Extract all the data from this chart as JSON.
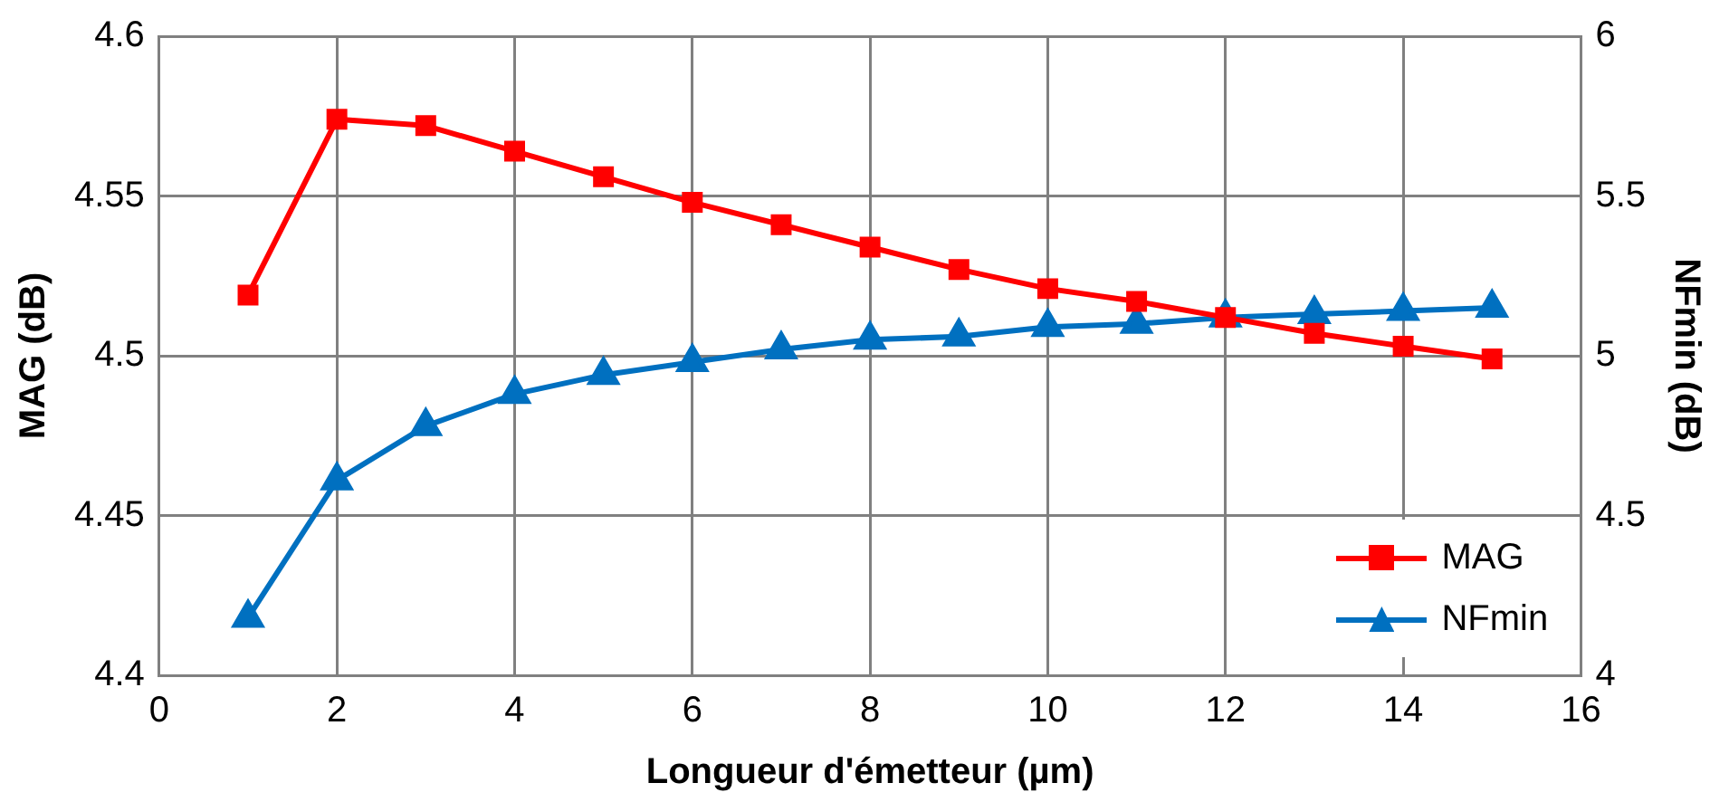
{
  "chart_data": {
    "type": "line",
    "xlabel": "Longueur d'émetteur (µm)",
    "ylabel": "MAG (dB)",
    "y2label": "NFmin (dB)",
    "x": [
      1,
      2,
      3,
      4,
      5,
      6,
      7,
      8,
      9,
      10,
      11,
      12,
      13,
      14,
      15
    ],
    "series": [
      {
        "name": "MAG",
        "color": "#ff0000",
        "marker": "square",
        "values": [
          4.519,
          4.574,
          4.572,
          4.564,
          4.556,
          4.548,
          4.541,
          4.534,
          4.527,
          4.521,
          4.517,
          4.512,
          4.507,
          4.503,
          4.499
        ]
      },
      {
        "name": "NFmin",
        "color": "#0070c0",
        "marker": "triangle",
        "axis": "y2",
        "values": [
          4.18,
          4.61,
          4.78,
          4.88,
          4.94,
          4.98,
          5.02,
          5.05,
          5.06,
          5.09,
          5.1,
          5.12,
          5.13,
          5.14,
          5.15
        ]
      }
    ],
    "xlim": [
      0,
      16
    ],
    "xticks": [
      0,
      2,
      4,
      6,
      8,
      10,
      12,
      14,
      16
    ],
    "ylim": [
      4.4,
      4.6
    ],
    "yticks": [
      4.4,
      4.45,
      4.5,
      4.55,
      4.6
    ],
    "y2lim": [
      4,
      6
    ],
    "y2ticks": [
      4,
      4.5,
      5,
      5.5,
      6
    ],
    "grid": true,
    "legend": "bottom right"
  }
}
